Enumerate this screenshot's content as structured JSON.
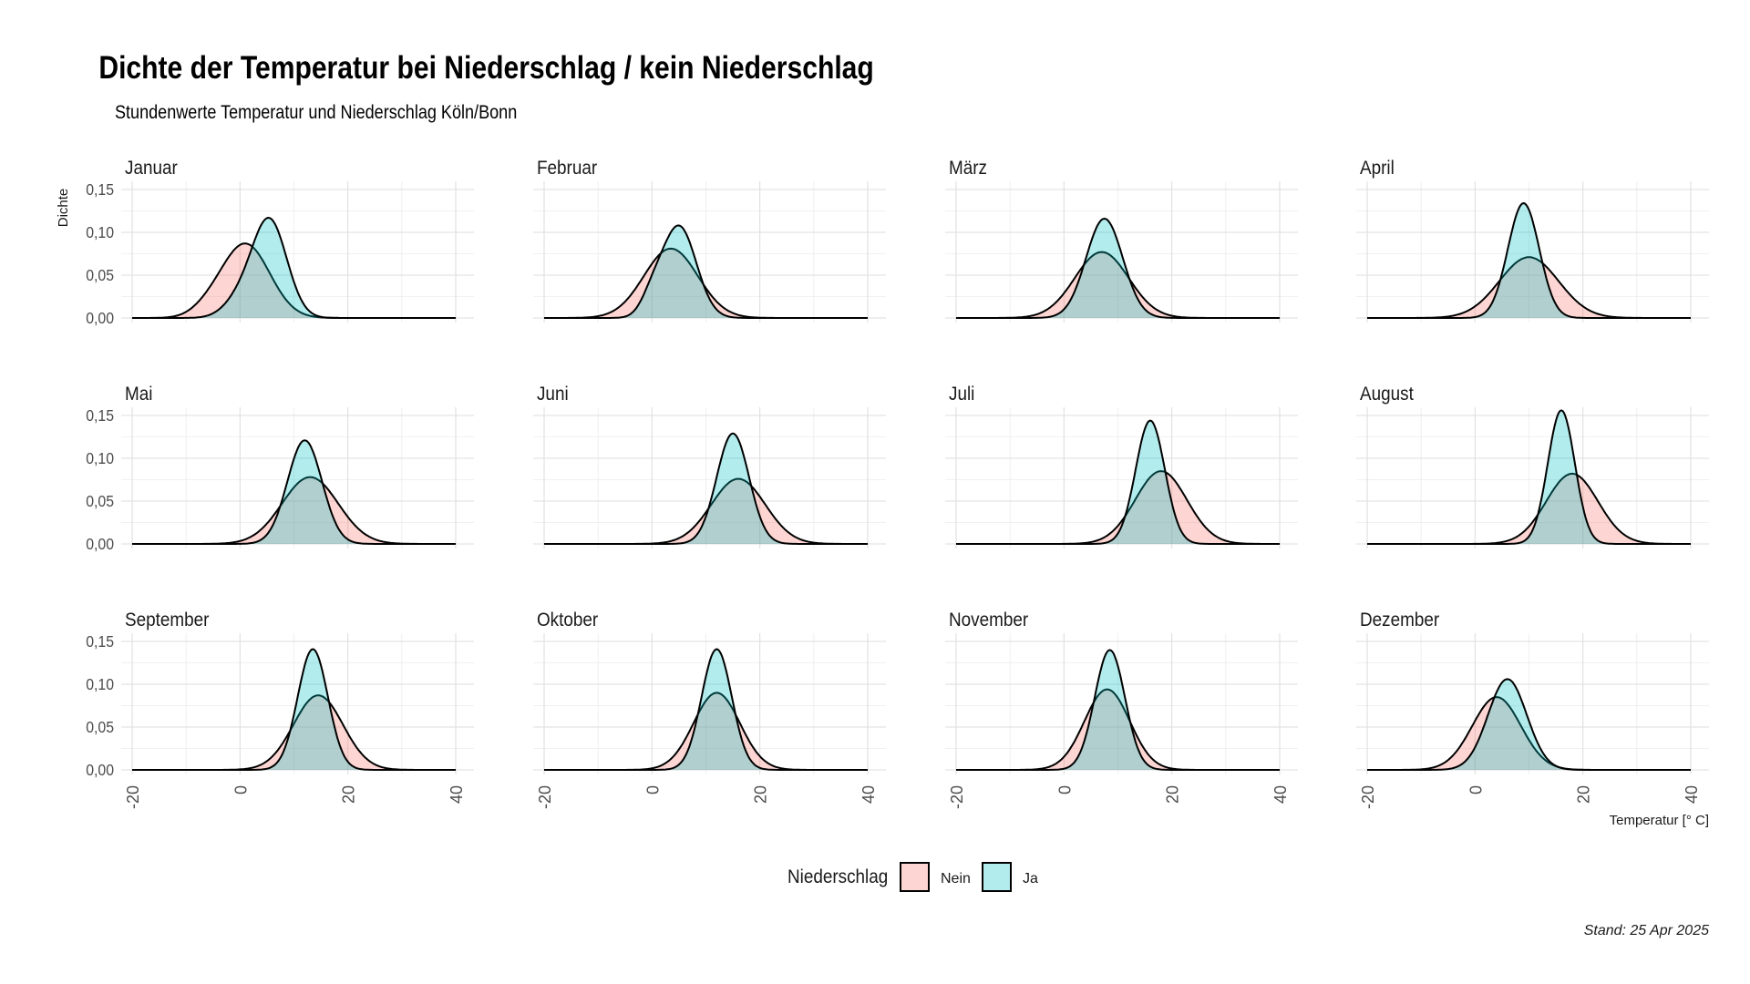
{
  "title": "Dichte der Temperatur bei Niederschlag / kein Niederschlag",
  "subtitle": "Stundenwerte Temperatur und Niederschlag Köln/Bonn",
  "caption": "Stand: 25 Apr 2025",
  "colors": {
    "nein": "#F8766D",
    "ja": "#00BFC4",
    "fill_alpha": 0.3
  },
  "chart_data": {
    "type": "area",
    "facet_by": "Monat",
    "xlabel": "Temperatur [° C]",
    "ylabel": "Dichte",
    "xlim": [
      -20,
      40
    ],
    "ylim": [
      0,
      0.15
    ],
    "x_ticks": [
      "-20",
      "0",
      "20",
      "40"
    ],
    "y_ticks": [
      "0,00",
      "0,05",
      "0,10",
      "0,15"
    ],
    "grid": true,
    "legend": {
      "title": "Niederschlag",
      "position": "bottom",
      "entries": [
        "Nein",
        "Ja"
      ]
    },
    "series_names": [
      "Nein",
      "Ja"
    ],
    "facets": [
      {
        "label": "Januar",
        "Nein": [
          {
            "m": 1,
            "s": 4.5,
            "w": 1.0,
            "h": 0.087
          },
          {
            "m": -6,
            "s": 3,
            "w": 0.08
          }
        ],
        "Ja": [
          {
            "m": 5.5,
            "s": 3.2,
            "w": 0.85,
            "h": 0.117
          },
          {
            "m": 0,
            "s": 3,
            "w": 0.15
          }
        ]
      },
      {
        "label": "Februar",
        "Nein": [
          {
            "m": 3.5,
            "s": 5,
            "w": 1.0,
            "h": 0.081
          }
        ],
        "Ja": [
          {
            "m": 5,
            "s": 3.2,
            "w": 0.85,
            "h": 0.108
          },
          {
            "m": 0,
            "s": 2,
            "w": 0.15
          }
        ]
      },
      {
        "label": "März",
        "Nein": [
          {
            "m": 7,
            "s": 5,
            "w": 1.0,
            "h": 0.077
          }
        ],
        "Ja": [
          {
            "m": 7.5,
            "s": 3.4,
            "w": 1.0,
            "h": 0.116
          }
        ]
      },
      {
        "label": "April",
        "Nein": [
          {
            "m": 10,
            "s": 5.5,
            "w": 1.0,
            "h": 0.071
          }
        ],
        "Ja": [
          {
            "m": 9,
            "s": 2.9,
            "w": 1.0,
            "h": 0.134
          }
        ]
      },
      {
        "label": "Mai",
        "Nein": [
          {
            "m": 13,
            "s": 5.2,
            "w": 1.0,
            "h": 0.078
          }
        ],
        "Ja": [
          {
            "m": 12,
            "s": 3.2,
            "w": 1.0,
            "h": 0.121
          }
        ]
      },
      {
        "label": "Juni",
        "Nein": [
          {
            "m": 16,
            "s": 5,
            "w": 1.0,
            "h": 0.076
          }
        ],
        "Ja": [
          {
            "m": 15,
            "s": 3,
            "w": 1.0,
            "h": 0.129
          }
        ]
      },
      {
        "label": "Juli",
        "Nein": [
          {
            "m": 18,
            "s": 4.8,
            "w": 1.0,
            "h": 0.085
          }
        ],
        "Ja": [
          {
            "m": 16,
            "s": 2.7,
            "w": 1.0,
            "h": 0.144
          }
        ]
      },
      {
        "label": "August",
        "Nein": [
          {
            "m": 18,
            "s": 4.8,
            "w": 1.0,
            "h": 0.082
          }
        ],
        "Ja": [
          {
            "m": 16,
            "s": 2.5,
            "w": 1.0,
            "h": 0.156
          }
        ]
      },
      {
        "label": "September",
        "Nein": [
          {
            "m": 14.5,
            "s": 4.6,
            "w": 1.0,
            "h": 0.087
          }
        ],
        "Ja": [
          {
            "m": 13.5,
            "s": 2.8,
            "w": 1.0,
            "h": 0.141
          }
        ]
      },
      {
        "label": "Oktober",
        "Nein": [
          {
            "m": 12,
            "s": 4.3,
            "w": 1.0,
            "h": 0.09
          }
        ],
        "Ja": [
          {
            "m": 12,
            "s": 2.8,
            "w": 1.0,
            "h": 0.141
          }
        ]
      },
      {
        "label": "November",
        "Nein": [
          {
            "m": 8,
            "s": 4.2,
            "w": 1.0,
            "h": 0.094
          }
        ],
        "Ja": [
          {
            "m": 8.5,
            "s": 2.8,
            "w": 1.0,
            "h": 0.14
          }
        ]
      },
      {
        "label": "Dezember",
        "Nein": [
          {
            "m": 4,
            "s": 4.5,
            "w": 1.0,
            "h": 0.085
          }
        ],
        "Ja": [
          {
            "m": 6,
            "s": 3.6,
            "w": 1.0,
            "h": 0.106
          }
        ]
      }
    ]
  }
}
